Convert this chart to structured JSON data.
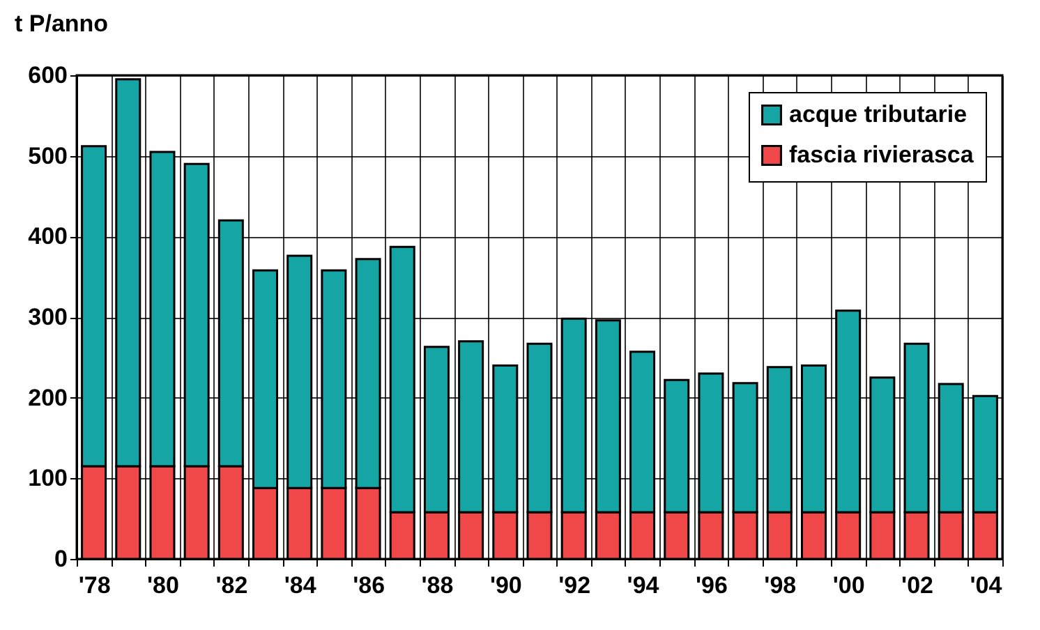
{
  "chart_data": {
    "type": "bar",
    "ylabel": "t P/anno",
    "categories": [
      "'78",
      null,
      "'80",
      null,
      "'82",
      null,
      "'84",
      null,
      "'86",
      null,
      "'88",
      null,
      "'90",
      null,
      "'92",
      null,
      "'94",
      null,
      "'96",
      null,
      "'98",
      null,
      "'00",
      null,
      "'02",
      null,
      "'04"
    ],
    "stacked": true,
    "series": [
      {
        "name": "fascia rivierasca",
        "color": "#f04848",
        "values": [
          115,
          115,
          115,
          115,
          115,
          88,
          88,
          88,
          88,
          58,
          58,
          58,
          58,
          58,
          58,
          58,
          58,
          58,
          58,
          58,
          58,
          58,
          58,
          58,
          58,
          58,
          58
        ]
      },
      {
        "name": "acque tributarie",
        "color": "#15a5a5",
        "values": [
          397,
          480,
          390,
          375,
          305,
          270,
          288,
          270,
          284,
          329,
          205,
          212,
          182,
          209,
          240,
          238,
          199,
          164,
          172,
          160,
          180,
          182,
          250,
          167,
          209,
          159,
          144
        ]
      }
    ],
    "ylim": [
      0,
      600
    ],
    "yticks": [
      0,
      100,
      200,
      300,
      400,
      500,
      600
    ],
    "grid": true,
    "legend": "top right"
  }
}
